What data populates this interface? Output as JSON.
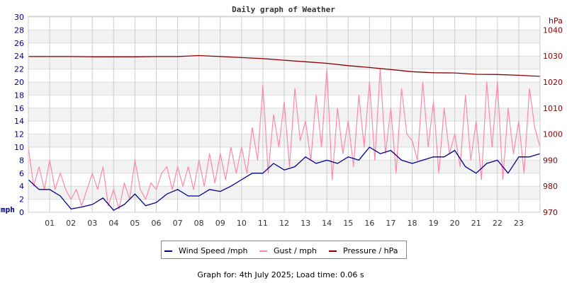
{
  "chart_data": {
    "type": "line",
    "title": "Daily graph of Weather",
    "x_ticks": [
      "01",
      "02",
      "03",
      "04",
      "05",
      "06",
      "07",
      "08",
      "09",
      "10",
      "11",
      "12",
      "13",
      "14",
      "15",
      "16",
      "17",
      "18",
      "19",
      "20",
      "21",
      "22",
      "23"
    ],
    "xlim": [
      0,
      24
    ],
    "y_left": {
      "label": "mph",
      "lim": [
        0,
        30
      ],
      "ticks": [
        "0",
        "2",
        "4",
        "6",
        "8",
        "10",
        "12",
        "14",
        "16",
        "18",
        "20",
        "22",
        "24",
        "26",
        "28",
        "30"
      ]
    },
    "y_right": {
      "label": "hPa",
      "lim": [
        970,
        1045
      ],
      "ticks": [
        "970",
        "980",
        "990",
        "1000",
        "1010",
        "1020",
        "1030",
        "1040"
      ]
    },
    "grid": true,
    "legend_position": "bottom",
    "series": [
      {
        "name": "Wind Speed /mph",
        "color": "#00008b",
        "axis": "left",
        "x_step_hours": 0.5,
        "values": [
          5,
          3.5,
          3.5,
          2.5,
          0.5,
          0.8,
          1.2,
          2.2,
          0.3,
          1.2,
          2.8,
          1.0,
          1.5,
          2.8,
          3.5,
          2.5,
          2.5,
          3.5,
          3.2,
          4,
          5,
          6,
          6,
          7.5,
          6.5,
          7,
          8.5,
          7.5,
          8,
          7.5,
          8.5,
          8,
          10,
          9,
          9.5,
          8,
          7.5,
          8,
          8.5,
          8.5,
          9.5,
          7,
          6,
          7.5,
          8,
          6,
          8.5,
          8.5,
          9
        ]
      },
      {
        "name": "Gust / mph",
        "color": "#ff88aa",
        "axis": "left",
        "x_step_hours": 0.25,
        "values": [
          10,
          4,
          7,
          3.5,
          8,
          3.5,
          6,
          3.5,
          2,
          3.5,
          1,
          3.5,
          6,
          3.5,
          7,
          1,
          3.5,
          0.5,
          4.5,
          2,
          8,
          3.5,
          2,
          4.5,
          3.5,
          6,
          7,
          3.5,
          7,
          4,
          7,
          3.5,
          8,
          4,
          9,
          4.5,
          9,
          5,
          10,
          6,
          10,
          6,
          13,
          8,
          19.5,
          6,
          15,
          10,
          17,
          7,
          19,
          11,
          14,
          8,
          18,
          10,
          22,
          5,
          16,
          9,
          14,
          7,
          18,
          10,
          20,
          8,
          22,
          9,
          16,
          6,
          19,
          12,
          11,
          8,
          20,
          10,
          17,
          6,
          16,
          9,
          12,
          7,
          18,
          8,
          14,
          5,
          20,
          10,
          20,
          5,
          16,
          9,
          14,
          6,
          19,
          13,
          10
        ]
      },
      {
        "name": "Pressure / hPa",
        "color": "#8b0000",
        "axis": "right",
        "x_step_hours": 1,
        "values": [
          1029.8,
          1029.8,
          1029.8,
          1029.7,
          1029.7,
          1029.7,
          1029.8,
          1029.8,
          1030.2,
          1029.8,
          1029.4,
          1029,
          1028.4,
          1027.8,
          1027.2,
          1026.3,
          1025.6,
          1024.8,
          1024,
          1023.6,
          1023.5,
          1023,
          1022.9,
          1022.6,
          1022.2
        ]
      }
    ]
  },
  "footer": "Graph for: 4th July 2025; Load time: 0.06 s"
}
